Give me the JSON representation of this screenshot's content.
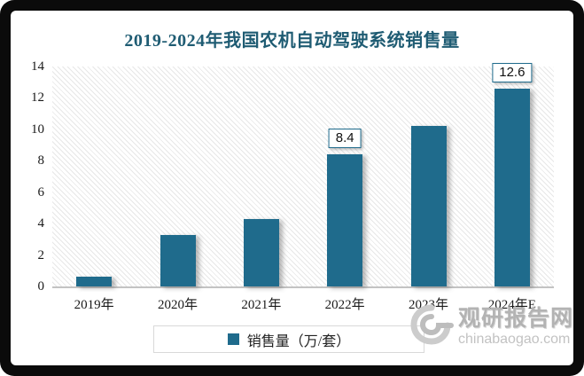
{
  "chart_data": {
    "type": "bar",
    "title": "2019-2024年我国农机自动驾驶系统销售量",
    "title_color": "#1f5c73",
    "categories": [
      "2019年",
      "2020年",
      "2021年",
      "2022年",
      "2023年",
      "2024年E"
    ],
    "values": [
      0.6,
      3.3,
      4.3,
      8.4,
      10.2,
      12.6
    ],
    "data_labels": [
      "",
      "",
      "",
      "8.4",
      "",
      "12.6"
    ],
    "legend": "销售量（万/套）",
    "legend_position": "bottom",
    "bar_color": "#1f6b8c",
    "ylim": [
      0,
      14
    ],
    "yticks": [
      0,
      2,
      4,
      6,
      8,
      10,
      12,
      14
    ],
    "grid": false,
    "plot_background": "diagonal-hatch"
  },
  "watermark": {
    "name": "观研报告网",
    "domain": "chinabaogao.com",
    "logo": "swirl-icon",
    "color": "#b3b3b3"
  }
}
